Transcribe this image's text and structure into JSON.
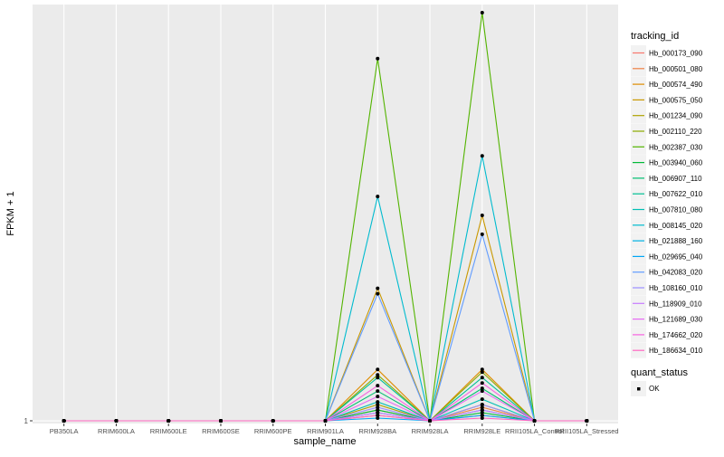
{
  "chart_data": {
    "type": "line",
    "xlabel": "sample_name",
    "ylabel": "FPKM + 1",
    "y_tick_labels": [
      "1"
    ],
    "ylim": [
      0.95,
      8.7
    ],
    "grid": true,
    "legend_position": "right",
    "categories": [
      "PB350LA",
      "RRIM600LA",
      "RRIM600LE",
      "RRIM600SE",
      "RRIM600PE",
      "RRIM901LA",
      "RRIM928BA",
      "RRIM928LA",
      "RRIM928LE",
      "RRII105LA_Control",
      "RRII105LA_Stressed"
    ],
    "legend": {
      "title": "tracking_id",
      "status_title": "quant_status",
      "status_label": "OK"
    },
    "series": [
      {
        "name": "Hb_000173_090",
        "color": "#F8766D",
        "values": [
          1,
          1,
          1,
          1,
          1,
          1,
          1.1,
          1,
          1.1,
          1,
          1
        ]
      },
      {
        "name": "Hb_000501_080",
        "color": "#EE8044",
        "values": [
          1,
          1,
          1,
          1,
          1,
          1,
          1.2,
          1,
          1.25,
          1,
          1
        ]
      },
      {
        "name": "Hb_000574_490",
        "color": "#DE8C00",
        "values": [
          1,
          1,
          1,
          1,
          1,
          1,
          1.95,
          1,
          1.95,
          1,
          1
        ]
      },
      {
        "name": "Hb_000575_050",
        "color": "#C99800",
        "values": [
          1,
          1,
          1,
          1,
          1,
          1,
          3.45,
          1,
          4.8,
          1,
          1
        ]
      },
      {
        "name": "Hb_001234_090",
        "color": "#AEA200",
        "values": [
          1,
          1,
          1,
          1,
          1,
          1,
          1.3,
          1,
          1.3,
          1,
          1
        ]
      },
      {
        "name": "Hb_002110_220",
        "color": "#8BAB00",
        "values": [
          1,
          1,
          1,
          1,
          1,
          1,
          1.85,
          1,
          1.9,
          1,
          1
        ]
      },
      {
        "name": "Hb_002387_030",
        "color": "#53B400",
        "values": [
          1,
          1,
          1,
          1,
          1,
          1,
          7.7,
          1,
          8.55,
          1,
          1
        ]
      },
      {
        "name": "Hb_003940_060",
        "color": "#00BA38",
        "values": [
          1,
          1,
          1,
          1,
          1,
          1,
          1.2,
          1,
          1.15,
          1,
          1
        ]
      },
      {
        "name": "Hb_006907_110",
        "color": "#00BE70",
        "values": [
          1,
          1,
          1,
          1,
          1,
          1,
          1.55,
          1,
          1.6,
          1,
          1
        ]
      },
      {
        "name": "Hb_007622_010",
        "color": "#00C094",
        "values": [
          1,
          1,
          1,
          1,
          1,
          1,
          1.8,
          1,
          1.8,
          1,
          1
        ]
      },
      {
        "name": "Hb_007810_080",
        "color": "#00BFB4",
        "values": [
          1,
          1,
          1,
          1,
          1,
          1,
          1.35,
          1,
          1.4,
          1,
          1
        ]
      },
      {
        "name": "Hb_008145_020",
        "color": "#00BBCF",
        "values": [
          1,
          1,
          1,
          1,
          1,
          1,
          5.15,
          1,
          5.9,
          1,
          1
        ]
      },
      {
        "name": "Hb_021888_160",
        "color": "#00B2E4",
        "values": [
          1,
          1,
          1,
          1,
          1,
          1,
          1.15,
          1,
          1.2,
          1,
          1
        ]
      },
      {
        "name": "Hb_029695_040",
        "color": "#00A6F5",
        "values": [
          1,
          1,
          1,
          1,
          1,
          1,
          1.05,
          1,
          1.1,
          1,
          1
        ]
      },
      {
        "name": "Hb_042083_020",
        "color": "#619CFF",
        "values": [
          1,
          1,
          1,
          1,
          1,
          1,
          3.35,
          1,
          4.45,
          1,
          1
        ]
      },
      {
        "name": "Hb_108160_010",
        "color": "#9C8EFF",
        "values": [
          1,
          1,
          1,
          1,
          1,
          1,
          1.25,
          1,
          1.3,
          1,
          1
        ]
      },
      {
        "name": "Hb_118909_010",
        "color": "#C77CFF",
        "values": [
          1,
          1,
          1,
          1,
          1,
          1,
          1.15,
          1,
          1.2,
          1,
          1
        ]
      },
      {
        "name": "Hb_121689_030",
        "color": "#E76BF3",
        "values": [
          1,
          1,
          1,
          1,
          1,
          1,
          1.45,
          1,
          1.55,
          1,
          1
        ]
      },
      {
        "name": "Hb_174662_020",
        "color": "#F763E0",
        "values": [
          1,
          1,
          1,
          1,
          1,
          1,
          1.65,
          1,
          1.7,
          1,
          1
        ]
      },
      {
        "name": "Hb_186634_010",
        "color": "#FF66C1",
        "values": [
          1,
          1,
          1,
          1,
          1,
          1,
          1.1,
          1,
          1.05,
          1,
          1
        ]
      }
    ]
  }
}
